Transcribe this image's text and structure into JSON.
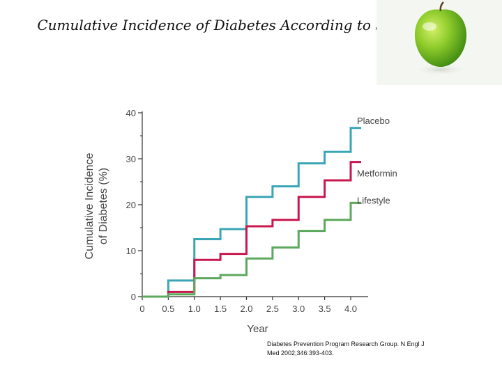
{
  "slide": {
    "title": "Cumulative Incidence of Diabetes According to Study Group",
    "citation_line1": "Diabetes Prevention Program Research Group. N Engl J",
    "citation_line2": "Med 2002;346:393-403."
  },
  "decoration": {
    "image": "green-apple"
  },
  "chart_data": {
    "type": "line",
    "step": true,
    "title": "",
    "xlabel": "Year",
    "ylabel": "Cumulative Incidence of Diabetes (%)",
    "ylabel_line1": "Cumulative Incidence",
    "ylabel_line2": "of Diabetes (%)",
    "xlim": [
      0,
      4.0
    ],
    "ylim": [
      0,
      40
    ],
    "x_ticks": [
      "0",
      "0.5",
      "1.0",
      "1.5",
      "2.0",
      "2.5",
      "3.0",
      "3.5",
      "4.0"
    ],
    "y_ticks": [
      "0",
      "10",
      "20",
      "30",
      "40"
    ],
    "grid": false,
    "legend": "end-of-line labels",
    "series": [
      {
        "name": "Placebo",
        "color": "#3aa6b5",
        "x": [
          0,
          0.5,
          1.0,
          1.5,
          2.0,
          2.5,
          3.0,
          3.5,
          4.0
        ],
        "y": [
          0,
          3.5,
          12.5,
          14.7,
          21.7,
          24.0,
          29.0,
          31.5,
          36.7
        ]
      },
      {
        "name": "Metformin",
        "color": "#c8174f",
        "x": [
          0,
          0.5,
          1.0,
          1.5,
          2.0,
          2.5,
          3.0,
          3.5,
          4.0
        ],
        "y": [
          0,
          1.0,
          8.0,
          9.3,
          15.3,
          16.7,
          21.7,
          25.3,
          29.3
        ]
      },
      {
        "name": "Lifestyle",
        "color": "#5ca85c",
        "x": [
          0,
          0.5,
          1.0,
          1.5,
          2.0,
          2.5,
          3.0,
          3.5,
          4.0
        ],
        "y": [
          0,
          0.5,
          4.0,
          4.7,
          8.3,
          10.7,
          14.3,
          16.7,
          20.4
        ]
      }
    ]
  }
}
